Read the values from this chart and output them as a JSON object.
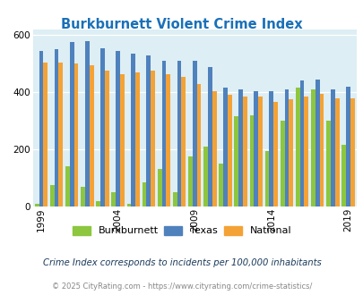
{
  "title": "Burkburnett Violent Crime Index",
  "years": [
    1999,
    2000,
    2001,
    2002,
    2003,
    2004,
    2005,
    2006,
    2007,
    2008,
    2009,
    2010,
    2011,
    2012,
    2013,
    2014,
    2015,
    2016,
    2017,
    2018,
    2019
  ],
  "burkburnett": [
    10,
    75,
    140,
    70,
    20,
    50,
    10,
    85,
    130,
    50,
    175,
    210,
    150,
    315,
    320,
    195,
    300,
    415,
    410,
    300,
    215
  ],
  "texas": [
    545,
    550,
    575,
    580,
    555,
    545,
    535,
    530,
    510,
    510,
    510,
    490,
    415,
    410,
    405,
    405,
    410,
    440,
    445,
    410,
    420
  ],
  "national": [
    505,
    505,
    500,
    495,
    475,
    465,
    470,
    475,
    465,
    455,
    430,
    405,
    390,
    385,
    385,
    365,
    375,
    385,
    395,
    380,
    380
  ],
  "colors": {
    "burkburnett": "#8dc63f",
    "texas": "#4f81bd",
    "national": "#f4a235"
  },
  "background_color": "#ddeef4",
  "ylim": [
    0,
    620
  ],
  "yticks": [
    0,
    200,
    400,
    600
  ],
  "xtick_positions": [
    1999,
    2004,
    2009,
    2014,
    2019
  ],
  "subtitle": "Crime Index corresponds to incidents per 100,000 inhabitants",
  "footer": "© 2025 CityRating.com - https://www.cityrating.com/crime-statistics/",
  "legend_labels": [
    "Burkburnett",
    "Texas",
    "National"
  ]
}
